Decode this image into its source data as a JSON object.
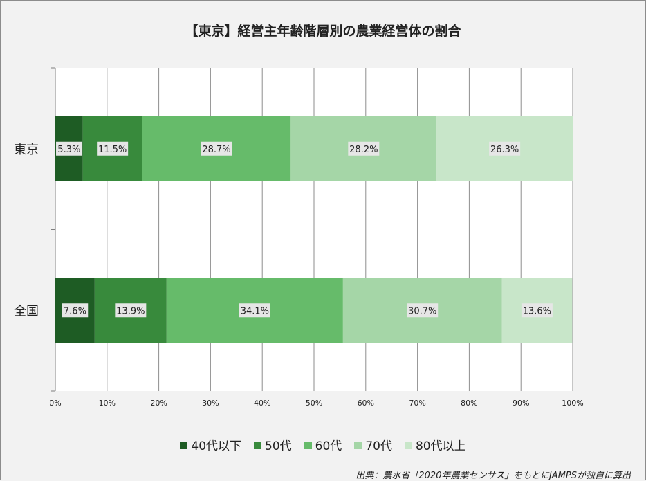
{
  "chart_data": {
    "type": "bar",
    "orientation": "horizontal",
    "stacked": "percent",
    "title": "【東京】経営主年齢階層別の農業経営体の割合",
    "categories": [
      "東京",
      "全国"
    ],
    "series": [
      {
        "name": "40代以下",
        "color": "#1e5c24",
        "values": [
          5.3,
          7.6
        ]
      },
      {
        "name": "50代",
        "color": "#388a3c",
        "values": [
          11.5,
          13.9
        ]
      },
      {
        "name": "60代",
        "color": "#66bb6a",
        "values": [
          28.7,
          34.1
        ]
      },
      {
        "name": "70代",
        "color": "#a5d6a7",
        "values": [
          28.2,
          30.7
        ]
      },
      {
        "name": "80代以上",
        "color": "#c8e6c9",
        "values": [
          26.3,
          13.6
        ]
      }
    ],
    "data_labels": [
      [
        "5.3%",
        "11.5%",
        "28.7%",
        "28.2%",
        "26.3%"
      ],
      [
        "7.6%",
        "13.9%",
        "34.1%",
        "30.7%",
        "13.6%"
      ]
    ],
    "xticks": [
      "0%",
      "10%",
      "20%",
      "30%",
      "40%",
      "50%",
      "60%",
      "70%",
      "80%",
      "90%",
      "100%"
    ],
    "xlim": [
      0,
      100
    ],
    "grid": true,
    "legend_position": "bottom"
  },
  "source_note": "出典：農水省「2020年農業センサス」をもとにJAMPSが独自に算出"
}
